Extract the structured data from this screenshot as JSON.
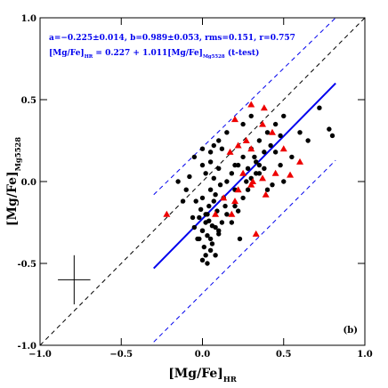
{
  "chart_data": {
    "type": "scatter",
    "annotations": [
      "a=−0.225±0.014, b=0.989±0.053, rms=0.151, r=0.757",
      [
        "[Mg/Fe]",
        "HR",
        " = 0.227 + 1.011[Mg/Fe]",
        "Mg5528",
        " (t-test)"
      ]
    ],
    "x_label": [
      "[Mg/Fe]",
      "HR"
    ],
    "y_label": [
      "[Mg/Fe]",
      "Mg5528"
    ],
    "panel_label": "(b)",
    "xlim": [
      -1,
      1
    ],
    "ylim": [
      -1,
      1
    ],
    "xticks": [
      {
        "value": -1,
        "label": "−1.0"
      },
      {
        "value": -0.5,
        "label": "−0.5"
      },
      {
        "value": 0,
        "label": "0.0"
      },
      {
        "value": 0.5,
        "label": "0.5"
      },
      {
        "value": 1,
        "label": "1.0"
      }
    ],
    "yticks": [
      {
        "value": -1,
        "label": "-1.0"
      },
      {
        "value": -0.5,
        "label": "-0.5"
      },
      {
        "value": 0,
        "label": "0.0"
      },
      {
        "value": 0.5,
        "label": "0.5"
      },
      {
        "value": 1,
        "label": "1.0"
      }
    ],
    "lines": [
      {
        "x": [
          -1,
          1
        ],
        "y": [
          -1,
          1
        ],
        "color": "#000",
        "dash": true
      },
      {
        "x": [
          -0.3,
          0.82
        ],
        "y": [
          -0.53,
          0.6
        ],
        "color": "#0000ee",
        "dash": false
      },
      {
        "x": [
          -0.3,
          0.82
        ],
        "y": [
          -0.08,
          1.0
        ],
        "color": "#0000ee",
        "dash": true
      },
      {
        "x": [
          -0.3,
          0.82
        ],
        "y": [
          -0.98,
          0.13
        ],
        "color": "#0000ee",
        "dash": true
      }
    ],
    "errorbar": {
      "x": -0.79,
      "y": -0.6,
      "xerr": 0.1,
      "yerr": 0.15
    },
    "series": [
      {
        "color": "#000000",
        "marker": "circle",
        "x": [
          0.0,
          0.02,
          0.05,
          0.08,
          0.03,
          -0.02,
          0.01,
          0.06,
          0.1,
          0.04,
          -0.05,
          0.0,
          0.07,
          0.12,
          0.02,
          -0.03,
          0.05,
          0.09,
          0.0,
          0.03,
          0.06,
          -0.01,
          0.04,
          0.08,
          0.11,
          0.14,
          0.02,
          -0.04,
          0.07,
          0.0,
          0.05,
          0.1,
          0.15,
          0.18,
          0.2,
          0.22,
          0.25,
          0.28,
          0.3,
          0.33,
          0.35,
          0.38,
          0.4,
          0.42,
          0.45,
          0.48,
          0.5,
          0.55,
          0.6,
          0.65,
          0.72,
          0.78,
          0.8,
          0.25,
          0.3,
          0.35,
          0.4,
          0.2,
          0.15,
          0.12,
          -0.08,
          -0.1,
          -0.12,
          -0.15,
          -0.05,
          0.0,
          0.05,
          0.1,
          0.15,
          0.2,
          0.25,
          0.3,
          0.35,
          0.45,
          0.5,
          0.1,
          0.05,
          0.0,
          -0.02,
          0.03,
          0.08,
          0.13,
          0.18,
          0.23,
          0.28,
          0.33,
          0.38,
          0.43,
          0.48,
          0.22,
          0.27,
          0.32,
          0.07,
          0.02,
          -0.06
        ],
        "y": [
          -0.3,
          -0.25,
          -0.35,
          -0.28,
          -0.2,
          -0.22,
          -0.4,
          -0.38,
          -0.32,
          -0.15,
          -0.28,
          -0.1,
          -0.12,
          -0.25,
          -0.45,
          -0.35,
          -0.05,
          -0.18,
          -0.3,
          -0.33,
          -0.27,
          -0.17,
          -0.24,
          -0.08,
          -0.02,
          -0.15,
          0.05,
          -0.12,
          0.02,
          0.1,
          0.12,
          0.08,
          0.0,
          0.05,
          -0.05,
          0.1,
          0.15,
          0.08,
          0.2,
          0.12,
          0.25,
          0.18,
          0.3,
          0.22,
          0.35,
          0.28,
          0.4,
          0.15,
          0.3,
          0.25,
          0.45,
          0.32,
          0.28,
          -0.1,
          0.02,
          0.05,
          -0.05,
          -0.15,
          -0.2,
          0.2,
          0.03,
          -0.05,
          -0.12,
          0.0,
          0.15,
          0.2,
          0.18,
          0.25,
          0.3,
          0.1,
          0.35,
          0.4,
          0.1,
          0.18,
          0.0,
          -0.3,
          -0.42,
          -0.48,
          -0.35,
          -0.5,
          -0.45,
          -0.1,
          -0.25,
          -0.35,
          -0.05,
          0.05,
          0.08,
          -0.02,
          0.1,
          -0.18,
          0.0,
          0.15,
          0.22,
          -0.2,
          -0.22
        ]
      },
      {
        "color": "#ee0000",
        "marker": "triangle",
        "x": [
          0.3,
          0.2,
          0.38,
          0.22,
          0.27,
          0.3,
          0.37,
          0.43,
          0.17,
          0.31,
          0.37,
          0.45,
          0.6,
          0.54,
          0.25,
          0.3,
          0.39,
          0.13,
          0.2,
          -0.22,
          0.33,
          0.18,
          0.08,
          0.5,
          0.22
        ],
        "y": [
          0.47,
          0.38,
          0.45,
          0.22,
          0.25,
          0.2,
          0.35,
          0.3,
          0.18,
          0.0,
          0.02,
          0.05,
          0.12,
          0.04,
          0.05,
          -0.02,
          -0.08,
          -0.1,
          -0.12,
          -0.2,
          -0.32,
          -0.2,
          -0.2,
          0.2,
          -0.05
        ]
      }
    ]
  }
}
